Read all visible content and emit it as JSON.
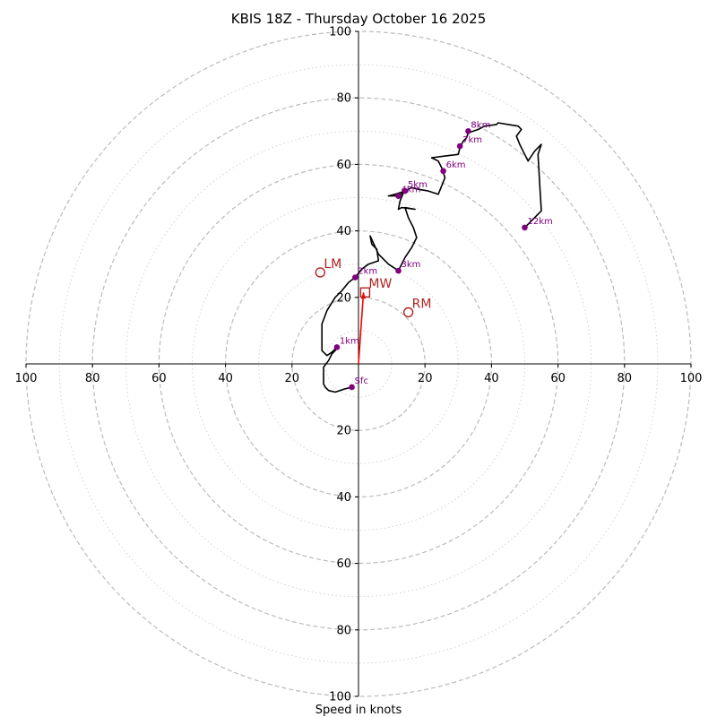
{
  "chart_data": {
    "type": "scatter",
    "title": "KBIS 18Z - Thursday October 16 2025",
    "xlabel": "Speed in knots",
    "xlim": [
      -100,
      100
    ],
    "ylim": [
      -100,
      100
    ],
    "x_ticks": [
      "100",
      "80",
      "60",
      "40",
      "20",
      "20",
      "40",
      "60",
      "80",
      "100"
    ],
    "y_ticks": [
      "100",
      "80",
      "60",
      "40",
      "20",
      "20",
      "40",
      "60",
      "80",
      "100"
    ],
    "grid": "concentric rings every 10 knots",
    "colors": {
      "trace": "#000000",
      "height_markers": "#800080",
      "motion": "#b22222",
      "grid": "#bbbbbb",
      "axes": "#000000"
    },
    "trace": [
      [
        -2,
        -7
      ],
      [
        -4,
        -7.5
      ],
      [
        -7,
        -8.5
      ],
      [
        -9,
        -8
      ],
      [
        -10,
        -7
      ],
      [
        -10.5,
        -6
      ],
      [
        -10.5,
        -4
      ],
      [
        -10.5,
        -1
      ],
      [
        -9,
        1
      ],
      [
        -8,
        3
      ],
      [
        -7,
        4
      ],
      [
        -6.5,
        5
      ],
      [
        -8,
        3.5
      ],
      [
        -9.5,
        2.5
      ],
      [
        -11,
        4
      ],
      [
        -11,
        8
      ],
      [
        -11,
        12
      ],
      [
        -9.5,
        16
      ],
      [
        -7,
        20
      ],
      [
        -5,
        22
      ],
      [
        -3,
        24.5
      ],
      [
        -1,
        26
      ],
      [
        1,
        28.5
      ],
      [
        3,
        30
      ],
      [
        6,
        31
      ],
      [
        5.5,
        34.5
      ],
      [
        4,
        36
      ],
      [
        3.5,
        38.5
      ],
      [
        6,
        33
      ],
      [
        9,
        30
      ],
      [
        12,
        28
      ],
      [
        14,
        32
      ],
      [
        16,
        35
      ],
      [
        17.5,
        38
      ],
      [
        16.5,
        41
      ],
      [
        15,
        44
      ],
      [
        14,
        47
      ],
      [
        17,
        46.5
      ],
      [
        13,
        47
      ],
      [
        12,
        46.5
      ],
      [
        12.5,
        49
      ],
      [
        13.5,
        51.5
      ],
      [
        12,
        50.5
      ],
      [
        9,
        50.5
      ],
      [
        11,
        51
      ],
      [
        14,
        52
      ],
      [
        16,
        53
      ],
      [
        18,
        52.5
      ],
      [
        21,
        52
      ],
      [
        24,
        51
      ],
      [
        26,
        56
      ],
      [
        25,
        59
      ],
      [
        24,
        61
      ],
      [
        22,
        62
      ],
      [
        26,
        62.5
      ],
      [
        30,
        63
      ],
      [
        30.5,
        65
      ],
      [
        31.5,
        67
      ],
      [
        32.5,
        68
      ],
      [
        33,
        69.5
      ],
      [
        36,
        70.5
      ],
      [
        38,
        71.5
      ],
      [
        41.5,
        72
      ],
      [
        42,
        72.5
      ],
      [
        45,
        72
      ],
      [
        48,
        71.5
      ],
      [
        49,
        70.5
      ],
      [
        47.5,
        68.5
      ],
      [
        48.5,
        66
      ],
      [
        50,
        63
      ],
      [
        51,
        61
      ],
      [
        53,
        64
      ],
      [
        55,
        66
      ],
      [
        54,
        63
      ],
      [
        54.5,
        54
      ],
      [
        55,
        46
      ],
      [
        50,
        41
      ]
    ],
    "heights": [
      {
        "label": "Sfc",
        "x": -2,
        "y": -7
      },
      {
        "label": "1km",
        "x": -6.5,
        "y": 5
      },
      {
        "label": "2km",
        "x": -1,
        "y": 26
      },
      {
        "label": "3km",
        "x": 12,
        "y": 28
      },
      {
        "label": "4km",
        "x": 12,
        "y": 50.5
      },
      {
        "label": "5km",
        "x": 14,
        "y": 52
      },
      {
        "label": "6km",
        "x": 25.5,
        "y": 58
      },
      {
        "label": "7km",
        "x": 30.5,
        "y": 65.5
      },
      {
        "label": "8km",
        "x": 33,
        "y": 70
      },
      {
        "label": "12km",
        "x": 50,
        "y": 41
      }
    ],
    "storm_motion": [
      {
        "label": "LM",
        "x": -11.5,
        "y": 27.5,
        "marker": "circle"
      },
      {
        "label": "MW",
        "x": 2,
        "y": 21.5,
        "marker": "square"
      },
      {
        "label": "RM",
        "x": 15,
        "y": 15.5,
        "marker": "circle"
      }
    ],
    "storm_motion_vector": {
      "from": [
        0,
        0
      ],
      "to": [
        1.5,
        21.5
      ]
    }
  }
}
